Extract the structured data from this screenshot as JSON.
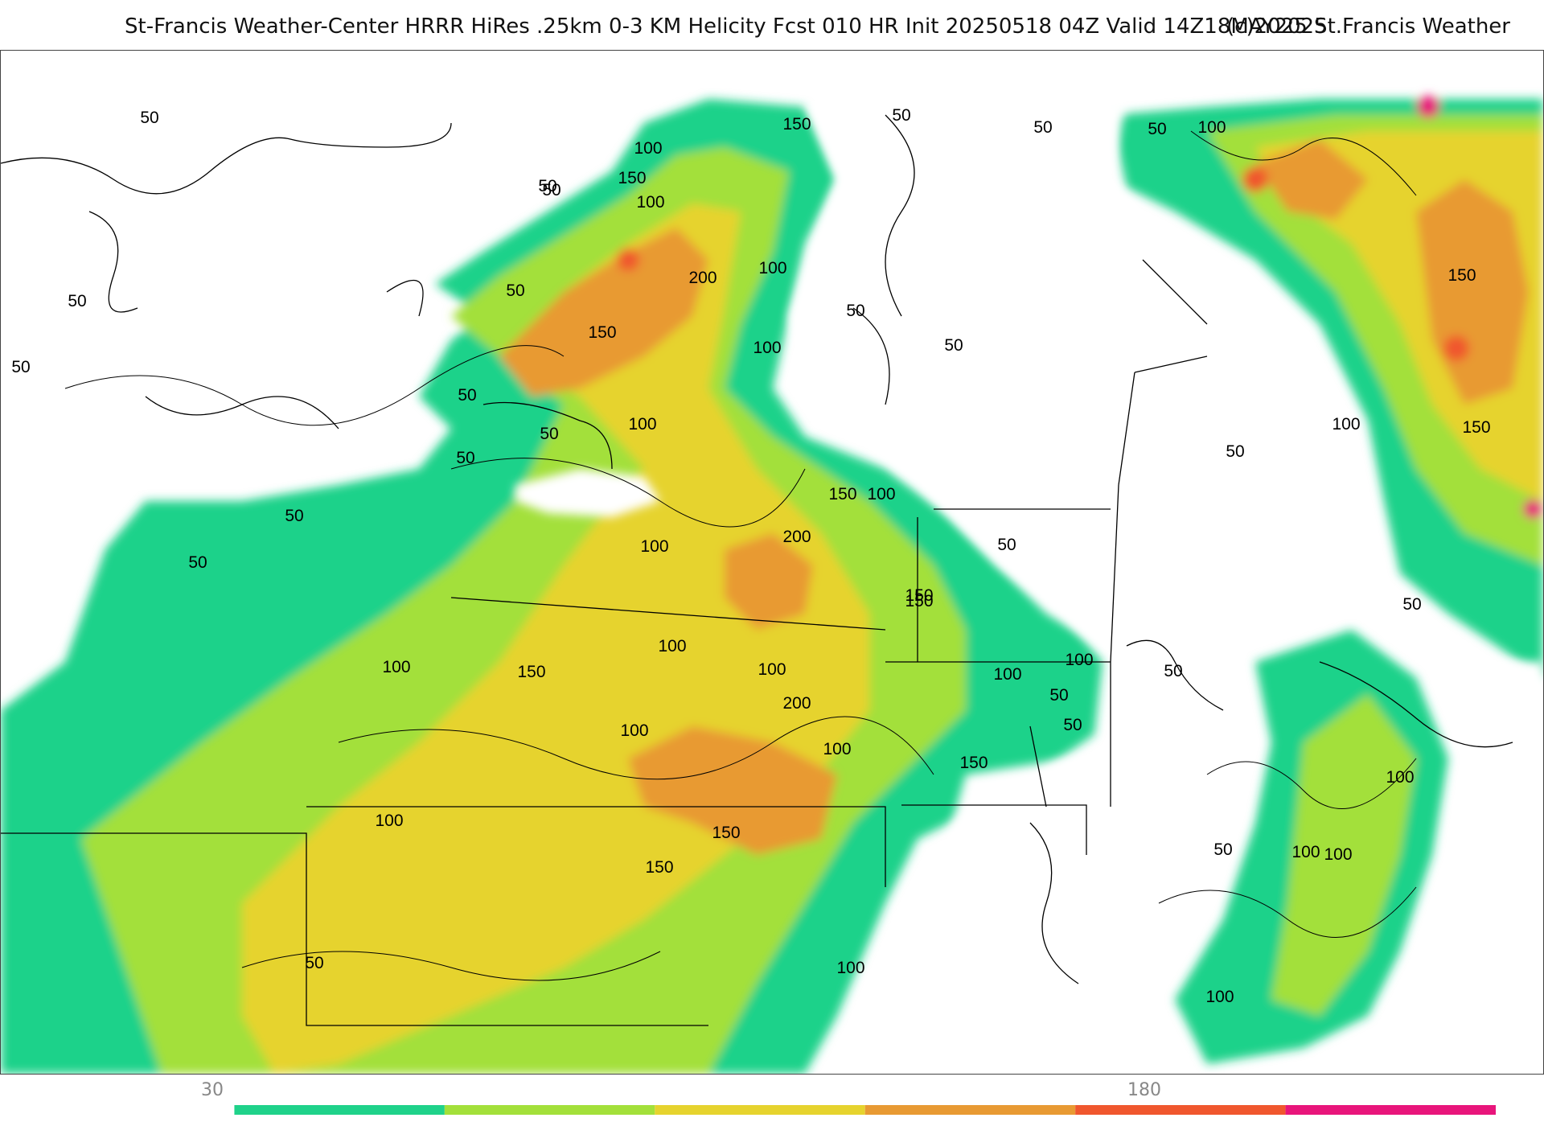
{
  "header": {
    "title": "St-Francis Weather-Center HRRR HiRes .25km 0-3 KM Helicity Fcst 010 HR Init 20250518 04Z  Valid 14Z18MAY2025",
    "copyright": "(c)2025 St.Francis Weather"
  },
  "colorbar": {
    "tick_labels": [
      "30",
      "180"
    ],
    "colors": [
      "#ffffff",
      "#1fd28a",
      "#a3e03a",
      "#e6d32e",
      "#e89a33",
      "#f0572e",
      "#e8157b"
    ]
  },
  "contour_labels": [
    "50",
    "50",
    "50",
    "50",
    "50",
    "100",
    "150",
    "50",
    "50",
    "150",
    "100",
    "200",
    "100",
    "100",
    "150",
    "50",
    "50",
    "100",
    "50",
    "50",
    "50",
    "50",
    "100",
    "150",
    "200",
    "150",
    "100",
    "100",
    "100",
    "150",
    "100",
    "100",
    "100",
    "150",
    "150",
    "100",
    "100",
    "150",
    "50",
    "50",
    "50",
    "50",
    "50",
    "100",
    "100",
    "50",
    "100",
    "150",
    "100",
    "150",
    "50",
    "150",
    "100",
    "100",
    "200",
    "50",
    "100",
    "100",
    "50",
    "50",
    "50"
  ]
}
